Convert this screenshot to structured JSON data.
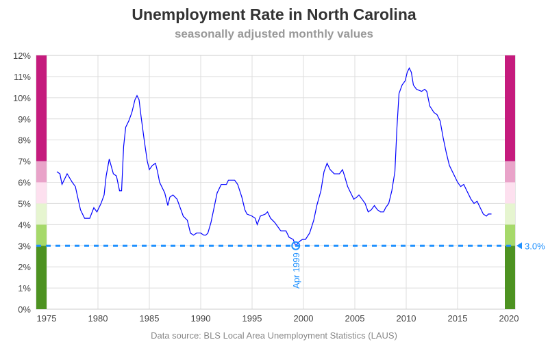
{
  "chart_data": {
    "type": "line",
    "title": "Unemployment Rate in North Carolina",
    "subtitle": "seasonally adjusted monthly values",
    "footnote": "Data source: BLS Local Area Unemployment Statistics (LAUS)",
    "xlabel": "",
    "ylabel": "",
    "xlim": [
      1974,
      2021
    ],
    "ylim": [
      0,
      12
    ],
    "x_ticks": [
      1975,
      1980,
      1985,
      1990,
      1995,
      2000,
      2005,
      2010,
      2015,
      2020
    ],
    "y_ticks": [
      0,
      1,
      2,
      3,
      4,
      5,
      6,
      7,
      8,
      9,
      10,
      11,
      12
    ],
    "y_tick_labels": [
      "0%",
      "1%",
      "2%",
      "3%",
      "4%",
      "5%",
      "6%",
      "7%",
      "8%",
      "9%",
      "10%",
      "11%",
      "12%"
    ],
    "grid": true,
    "line_color": "#0000ff",
    "bands": [
      {
        "from": 0,
        "to": 3,
        "color": "#4d9221"
      },
      {
        "from": 3,
        "to": 4,
        "color": "#a6d96a"
      },
      {
        "from": 4,
        "to": 5,
        "color": "#e6f5d0"
      },
      {
        "from": 5,
        "to": 6,
        "color": "#fde0ef"
      },
      {
        "from": 6,
        "to": 7,
        "color": "#e9a3c9"
      },
      {
        "from": 7,
        "to": 12,
        "color": "#c51b7d"
      }
    ],
    "reference": {
      "value": 3.0,
      "label": "3.0%",
      "color": "#1e90ff"
    },
    "minimum_marker": {
      "x": 1999.25,
      "y": 3.0,
      "label": "Apr 1999"
    },
    "series": [
      {
        "name": "North Carolina",
        "x": [
          1976.0,
          1976.3,
          1976.5,
          1977.0,
          1977.5,
          1977.8,
          1978.3,
          1978.7,
          1979.2,
          1979.6,
          1979.9,
          1980.3,
          1980.6,
          1980.8,
          1981.1,
          1981.5,
          1981.8,
          1982.1,
          1982.3,
          1982.5,
          1982.7,
          1983.0,
          1983.3,
          1983.6,
          1983.8,
          1984.0,
          1984.2,
          1984.5,
          1984.8,
          1985.0,
          1985.3,
          1985.6,
          1985.8,
          1986.0,
          1986.5,
          1986.8,
          1987.0,
          1987.3,
          1987.7,
          1988.0,
          1988.3,
          1988.7,
          1989.0,
          1989.3,
          1989.6,
          1990.0,
          1990.3,
          1990.5,
          1990.7,
          1991.0,
          1991.3,
          1991.6,
          1992.0,
          1992.5,
          1992.7,
          1993.3,
          1993.6,
          1994.0,
          1994.3,
          1994.5,
          1995.0,
          1995.3,
          1995.5,
          1995.8,
          1996.3,
          1996.5,
          1996.8,
          1997.2,
          1997.8,
          1998.3,
          1998.6,
          1999.0,
          1999.25,
          1999.6,
          1999.9,
          2000.2,
          2000.6,
          2001.0,
          2001.3,
          2001.7,
          2002.0,
          2002.3,
          2002.6,
          2003.0,
          2003.5,
          2003.8,
          2004.0,
          2004.3,
          2004.6,
          2004.9,
          2005.2,
          2005.4,
          2005.7,
          2006.0,
          2006.3,
          2006.6,
          2006.9,
          2007.2,
          2007.5,
          2007.8,
          2008.0,
          2008.3,
          2008.6,
          2008.9,
          2009.1,
          2009.3,
          2009.6,
          2009.9,
          2010.1,
          2010.3,
          2010.5,
          2010.7,
          2011.0,
          2011.5,
          2011.8,
          2012.0,
          2012.3,
          2012.7,
          2013.0,
          2013.3,
          2013.6,
          2013.9,
          2014.2,
          2014.6,
          2015.0,
          2015.3,
          2015.6,
          2015.9,
          2016.3,
          2016.6,
          2016.9,
          2017.2,
          2017.5,
          2017.8,
          2018.0,
          2018.3
        ],
        "y": [
          6.5,
          6.4,
          5.9,
          6.4,
          6.0,
          5.8,
          4.7,
          4.3,
          4.3,
          4.8,
          4.6,
          5.0,
          5.4,
          6.3,
          7.1,
          6.4,
          6.3,
          5.6,
          5.6,
          7.7,
          8.6,
          8.9,
          9.3,
          9.9,
          10.1,
          9.9,
          9.1,
          8.0,
          7.0,
          6.6,
          6.8,
          6.9,
          6.5,
          6.0,
          5.5,
          4.9,
          5.3,
          5.4,
          5.2,
          4.8,
          4.4,
          4.2,
          3.6,
          3.5,
          3.6,
          3.6,
          3.5,
          3.5,
          3.6,
          4.1,
          4.8,
          5.5,
          5.9,
          5.9,
          6.1,
          6.1,
          5.9,
          5.3,
          4.7,
          4.5,
          4.4,
          4.3,
          4.0,
          4.4,
          4.5,
          4.6,
          4.3,
          4.1,
          3.7,
          3.7,
          3.4,
          3.3,
          3.0,
          3.2,
          3.3,
          3.3,
          3.6,
          4.2,
          4.9,
          5.6,
          6.5,
          6.9,
          6.6,
          6.4,
          6.4,
          6.6,
          6.3,
          5.8,
          5.5,
          5.2,
          5.3,
          5.4,
          5.2,
          5.0,
          4.6,
          4.7,
          4.9,
          4.7,
          4.6,
          4.6,
          4.8,
          5.0,
          5.6,
          6.5,
          8.6,
          10.2,
          10.6,
          10.8,
          11.2,
          11.4,
          11.2,
          10.6,
          10.4,
          10.3,
          10.4,
          10.3,
          9.6,
          9.3,
          9.2,
          8.9,
          8.1,
          7.4,
          6.8,
          6.4,
          6.0,
          5.8,
          5.9,
          5.6,
          5.2,
          5.0,
          5.1,
          4.8,
          4.5,
          4.4,
          4.5,
          4.5
        ]
      }
    ]
  }
}
